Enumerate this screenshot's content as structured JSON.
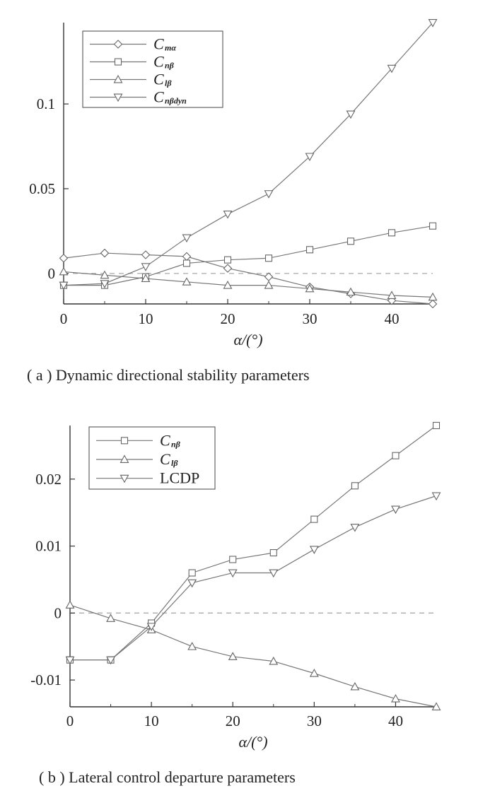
{
  "chart_data": [
    {
      "type": "line",
      "caption": "( a )  Dynamic directional stability parameters",
      "xlabel": "α/(°)",
      "ylabel": "",
      "xlim": [
        0,
        45
      ],
      "ylim": [
        -0.018,
        0.148
      ],
      "xticks": [
        "0",
        "10",
        "20",
        "30",
        "40"
      ],
      "yticks": [
        "0",
        "0.05",
        "0.1"
      ],
      "zero_reference_line": "dashed",
      "legend": "top-left",
      "x": [
        0,
        5,
        10,
        15,
        20,
        25,
        30,
        35,
        40,
        45
      ],
      "series": [
        {
          "name": "C",
          "name_sub": "mα",
          "marker": "diamond",
          "values": [
            0.009,
            0.012,
            0.011,
            0.01,
            0.003,
            -0.002,
            -0.008,
            -0.012,
            -0.016,
            -0.018
          ]
        },
        {
          "name": "C",
          "name_sub": "nβ",
          "marker": "square",
          "values": [
            -0.007,
            -0.007,
            -0.002,
            0.006,
            0.008,
            0.009,
            0.014,
            0.019,
            0.024,
            0.028
          ]
        },
        {
          "name": "C",
          "name_sub": "lβ",
          "marker": "triangle-up",
          "values": [
            0.001,
            -0.001,
            -0.003,
            -0.005,
            -0.007,
            -0.007,
            -0.009,
            -0.011,
            -0.013,
            -0.014
          ]
        },
        {
          "name": "C",
          "name_sub": "nβdyn",
          "marker": "triangle-down",
          "values": [
            -0.007,
            -0.006,
            0.004,
            0.021,
            0.035,
            0.047,
            0.069,
            0.094,
            0.121,
            0.148
          ]
        }
      ]
    },
    {
      "type": "line",
      "caption": "( b )  Lateral control departure parameters",
      "xlabel": "α/(°)",
      "ylabel": "",
      "xlim": [
        0,
        45
      ],
      "ylim": [
        -0.014,
        0.028
      ],
      "xticks": [
        "0",
        "10",
        "20",
        "30",
        "40"
      ],
      "yticks": [
        "-0.01",
        "0",
        "0.01",
        "0.02"
      ],
      "zero_reference_line": "dashed",
      "legend": "top-left",
      "x": [
        0,
        5,
        10,
        15,
        20,
        25,
        30,
        35,
        40,
        45
      ],
      "series": [
        {
          "name": "C",
          "name_sub": "nβ",
          "marker": "square",
          "values": [
            -0.007,
            -0.007,
            -0.0015,
            0.006,
            0.008,
            0.009,
            0.014,
            0.019,
            0.0235,
            0.028
          ]
        },
        {
          "name": "C",
          "name_sub": "lβ",
          "marker": "triangle-up",
          "values": [
            0.0012,
            -0.0008,
            -0.0025,
            -0.005,
            -0.0065,
            -0.0072,
            -0.009,
            -0.011,
            -0.0128,
            -0.014
          ]
        },
        {
          "name": "LCDP",
          "name_sub": "",
          "marker": "triangle-down",
          "values": [
            -0.007,
            -0.007,
            -0.002,
            0.0045,
            0.006,
            0.006,
            0.0095,
            0.0128,
            0.0155,
            0.0175
          ]
        }
      ]
    }
  ]
}
